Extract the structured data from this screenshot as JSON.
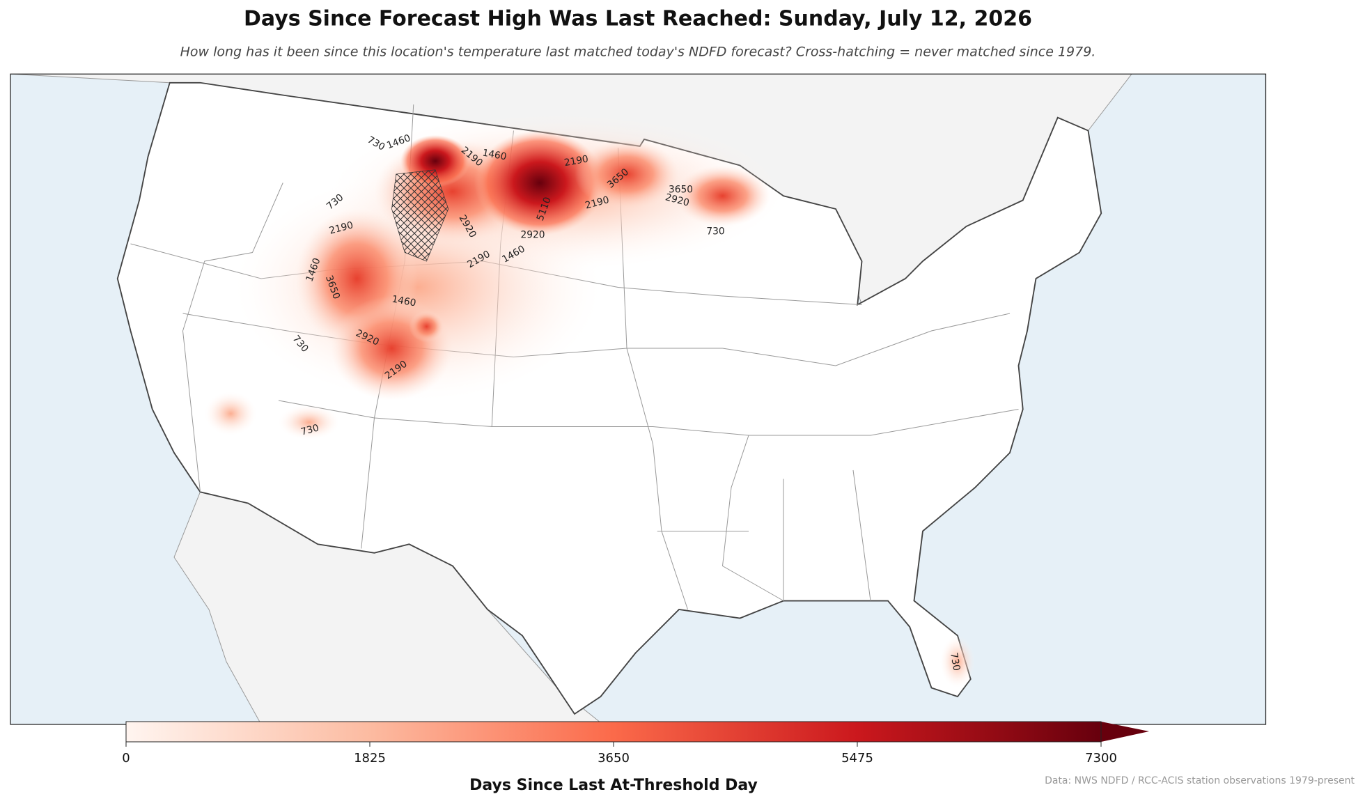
{
  "title": "Days Since Forecast High Was Last Reached: Sunday, July 12, 2026",
  "subtitle": "How long has it been since this location's temperature last matched today's NDFD forecast? Cross-hatching = never matched since 1979.",
  "map": {
    "contour_labels": [
      "730",
      "1460",
      "1460",
      "2190",
      "2190",
      "5110",
      "2920",
      "2190",
      "3650",
      "3650",
      "2920",
      "730",
      "730",
      "2190",
      "1460",
      "3650",
      "2920",
      "2190",
      "1460",
      "1460",
      "2920",
      "730",
      "2190",
      "730",
      "730"
    ]
  },
  "colorbar": {
    "label": "Days Since Last At-Threshold Day",
    "lim": [
      0,
      7300
    ],
    "ticks": [
      0,
      1825,
      3650,
      5475,
      7300
    ]
  },
  "source": "Data: NWS NDFD / RCC-ACIS station observations 1979-present"
}
